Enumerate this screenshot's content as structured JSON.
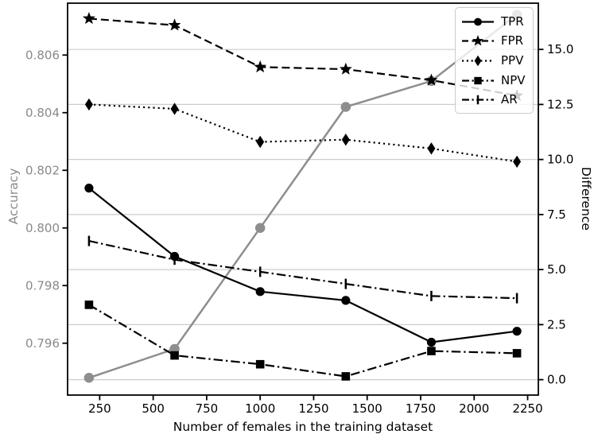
{
  "chart_data": {
    "type": "line",
    "title": "",
    "xlabel": "Number of females in the training dataset",
    "ylabel_left": "Accuracy",
    "ylabel_right": "Difference",
    "xlim": [
      100,
      2300
    ],
    "ylim_left": [
      0.7942,
      0.8078
    ],
    "ylim_right": [
      -0.7,
      17.1
    ],
    "xticks": [
      250,
      500,
      750,
      1000,
      1250,
      1500,
      1750,
      2000,
      2250
    ],
    "xtick_labels": [
      "250",
      "500",
      "750",
      "1000",
      "1250",
      "1500",
      "1750",
      "2000",
      "2250"
    ],
    "yticks_left": [
      0.796,
      0.798,
      0.8,
      0.802,
      0.804,
      0.806
    ],
    "ytick_labels_left": [
      "0.796",
      "0.798",
      "0.800",
      "0.802",
      "0.804",
      "0.806"
    ],
    "yticks_right": [
      0,
      2.5,
      5,
      7.5,
      10,
      12.5,
      15
    ],
    "ytick_labels_right": [
      "0.0",
      "2.5",
      "5.0",
      "7.5",
      "10.0",
      "12.5",
      "15.0"
    ],
    "grid": {
      "orientation": "horizontal",
      "aligned_to": "right-axis-ticks",
      "color": "#cccccc"
    },
    "x": [
      200,
      600,
      1000,
      1400,
      1800,
      2200
    ],
    "series": [
      {
        "name": "Accuracy",
        "axis": "left",
        "color": "#8e8e8e",
        "linestyle": "solid",
        "marker": "circle",
        "in_legend": false,
        "values": [
          0.7948,
          0.7958,
          0.8,
          0.8042,
          0.8051,
          0.8074
        ]
      },
      {
        "name": "TPR",
        "axis": "right",
        "color": "#000000",
        "linestyle": "solid",
        "marker": "circle",
        "in_legend": true,
        "values": [
          8.7,
          5.6,
          4.0,
          3.6,
          1.7,
          2.2
        ]
      },
      {
        "name": "FPR",
        "axis": "right",
        "color": "#000000",
        "linestyle": "dashed",
        "marker": "star",
        "in_legend": true,
        "values": [
          16.4,
          16.1,
          14.2,
          14.1,
          13.6,
          12.9
        ]
      },
      {
        "name": "PPV",
        "axis": "right",
        "color": "#000000",
        "linestyle": "dotted",
        "marker": "diamond",
        "in_legend": true,
        "values": [
          12.5,
          12.3,
          10.8,
          10.9,
          10.5,
          9.9
        ]
      },
      {
        "name": "NPV",
        "axis": "right",
        "color": "#000000",
        "linestyle": "dashdot",
        "marker": "square",
        "in_legend": true,
        "values": [
          3.4,
          1.1,
          0.7,
          0.15,
          1.3,
          1.2
        ]
      },
      {
        "name": "AR",
        "axis": "right",
        "color": "#000000",
        "linestyle": "dashdot",
        "marker": "vline",
        "in_legend": true,
        "values": [
          6.3,
          5.45,
          4.9,
          4.35,
          3.8,
          3.7
        ]
      }
    ],
    "legend": {
      "position": "upper right",
      "entries": [
        "TPR",
        "FPR",
        "PPV",
        "NPV",
        "AR"
      ]
    },
    "colors": {
      "axis_text": "#000000",
      "left_tick_text": "#8a8a8a",
      "grid": "#cccccc",
      "spine": "#000000",
      "legend_border": "#cccccc"
    }
  }
}
